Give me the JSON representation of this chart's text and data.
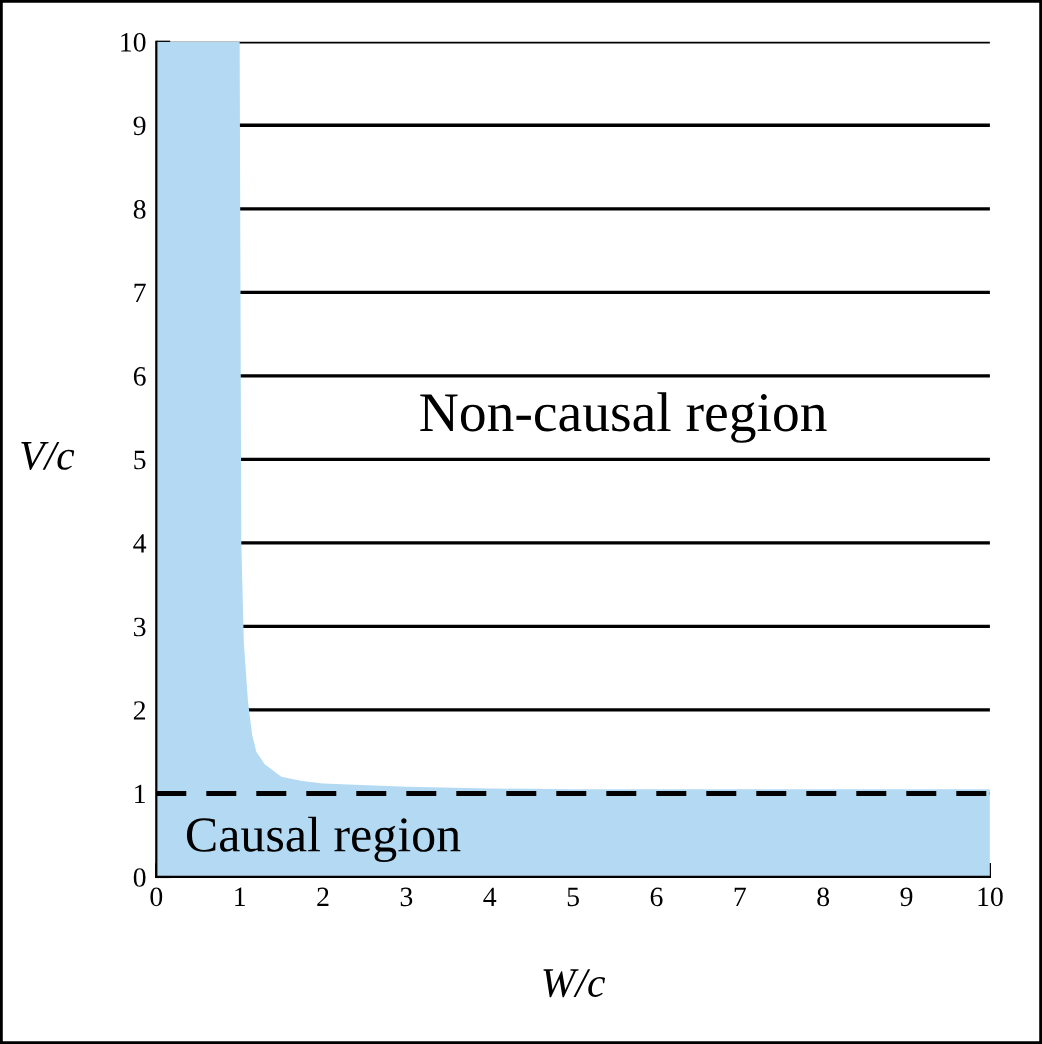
{
  "chart_data": {
    "type": "area",
    "xlabel": "W/c",
    "ylabel": "V/c",
    "x": [
      0,
      1.0,
      1.02,
      1.05,
      1.1,
      1.15,
      1.2,
      1.3,
      1.5,
      1.75,
      2,
      3,
      4,
      5,
      7,
      10
    ],
    "series": [
      {
        "color": "#b3daf2",
        "values": [
          10,
          10,
          4,
          2.8,
          2.1,
          1.7,
          1.5,
          1.35,
          1.2,
          1.15,
          1.12,
          1.08,
          1.06,
          1.05,
          1.05,
          1.05
        ]
      }
    ],
    "xlim": [
      0,
      10
    ],
    "ylim": [
      0,
      10
    ],
    "xticks": [
      0,
      1,
      2,
      3,
      4,
      5,
      6,
      7,
      8,
      9,
      10
    ],
    "yticks": [
      0,
      1,
      2,
      3,
      4,
      5,
      6,
      7,
      8,
      9,
      10
    ],
    "grid": "y",
    "ref_lines": [
      {
        "axis": "y",
        "value": 1,
        "line_style": "dashed",
        "color": "#000000"
      }
    ],
    "annotations": [
      "Non-causal region",
      "Causal region"
    ]
  }
}
